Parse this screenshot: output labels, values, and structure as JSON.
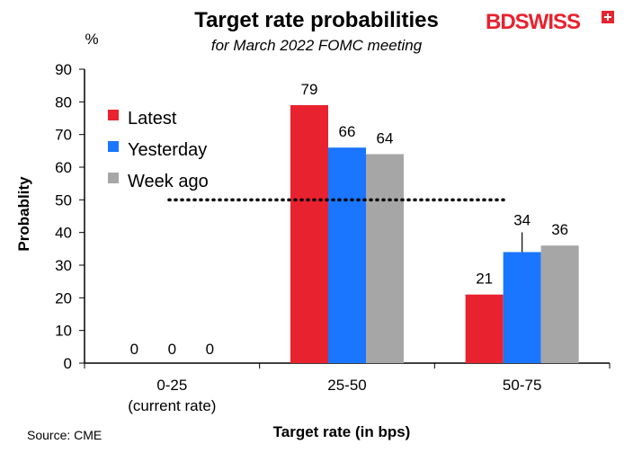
{
  "brand": {
    "name_part1": "BD",
    "name_part2": "SWISS",
    "color_bd": "#e8222e",
    "color_swiss": "#e8222e",
    "plus_color": "#e8222e"
  },
  "chart_data": {
    "type": "bar",
    "title": "Target rate probabilities",
    "subtitle": "for March 2022 FOMC meeting",
    "y_unit": "%",
    "xlabel": "Target rate (in bps)",
    "ylabel": "Probablity",
    "ylim": [
      0,
      90
    ],
    "yticks": [
      0,
      10,
      20,
      30,
      40,
      50,
      60,
      70,
      80,
      90
    ],
    "categories": [
      [
        "0-25",
        "(current rate)"
      ],
      [
        "25-50"
      ],
      [
        "50-75"
      ]
    ],
    "series": [
      {
        "name": "Latest",
        "color": "#e8222e",
        "values": [
          0,
          79,
          21
        ],
        "labels": [
          "0",
          "79",
          "21"
        ]
      },
      {
        "name": "Yesterday",
        "color": "#1a75ff",
        "values": [
          0,
          66,
          34
        ],
        "labels": [
          "0",
          "66",
          "34"
        ]
      },
      {
        "name": "Week ago",
        "color": "#a6a6a6",
        "values": [
          0,
          64,
          36
        ],
        "labels": [
          "0",
          "64",
          "36"
        ]
      }
    ],
    "reference_line": {
      "value": 50,
      "style": "dotted"
    },
    "legend_position": "left",
    "source": "Source: CME"
  }
}
